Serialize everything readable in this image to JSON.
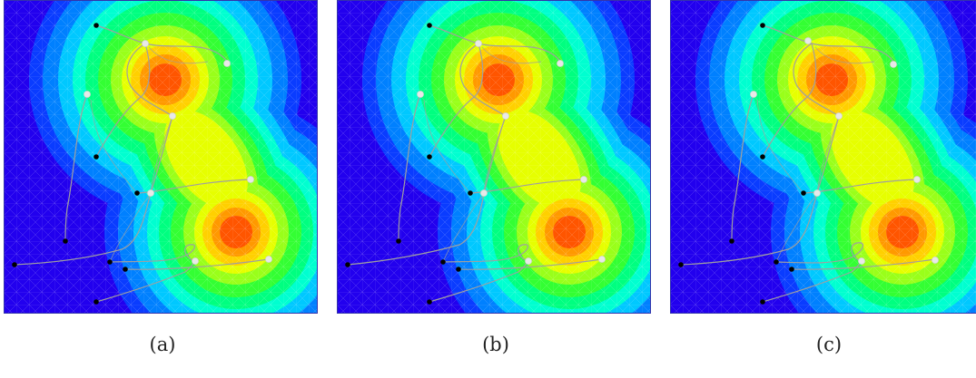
{
  "figure": {
    "panels": [
      {
        "caption": "(a)"
      },
      {
        "caption": "(b)"
      },
      {
        "caption": "(c)"
      }
    ],
    "colors": {
      "background_low": "#1f00ff",
      "contour_palette": [
        "#2200ee",
        "#0a3cff",
        "#0080ff",
        "#00c8ff",
        "#00ffd0",
        "#00ff80",
        "#33ff33",
        "#99ff1a",
        "#e6ff00",
        "#ffd000",
        "#ff9900",
        "#ff5500"
      ],
      "path_color": "#a0a0a0",
      "start_marker": "#000000",
      "goal_marker": "#e8e8e8"
    }
  }
}
